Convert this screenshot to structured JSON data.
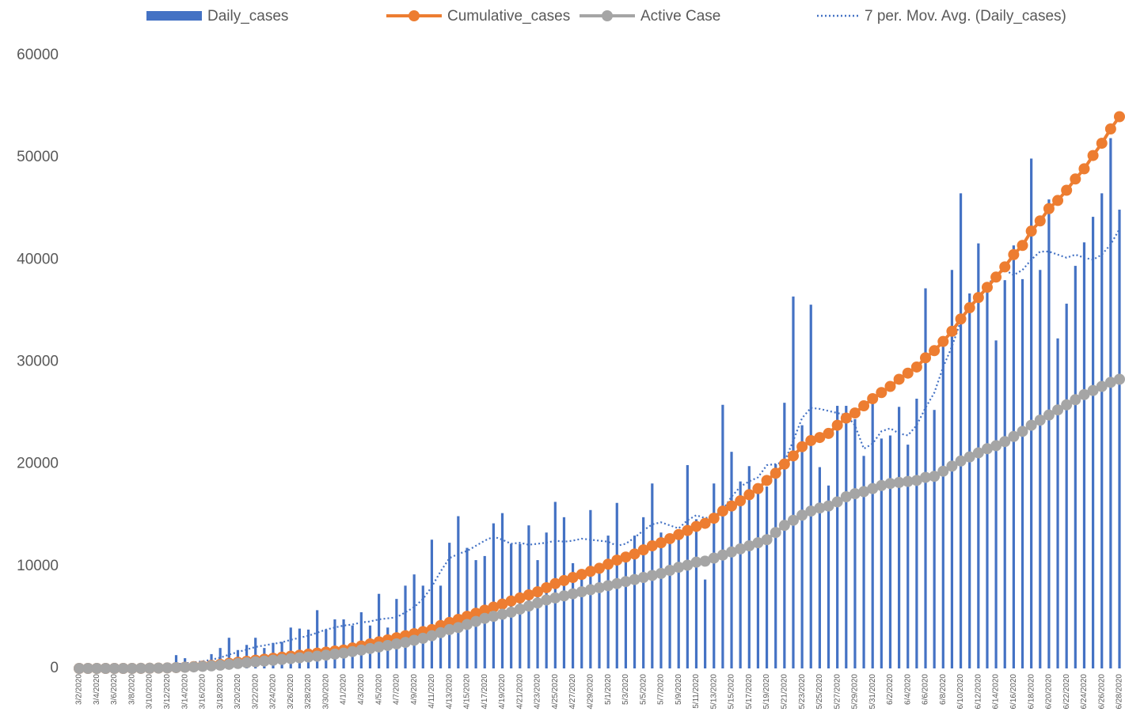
{
  "chart_data": {
    "type": "bar",
    "categories": [
      "3/2/2020",
      null,
      "3/4/2020",
      null,
      "3/6/2020",
      null,
      "3/8/2020",
      null,
      "3/10/2020",
      null,
      "3/12/2020",
      null,
      "3/14/2020",
      null,
      "3/16/2020",
      null,
      "3/18/2020",
      null,
      "3/20/2020",
      null,
      "3/22/2020",
      null,
      "3/24/2020",
      null,
      "3/26/2020",
      null,
      "3/28/2020",
      null,
      "3/30/2020",
      null,
      "4/1/2020",
      null,
      "4/3/2020",
      null,
      "4/5/2020",
      null,
      "4/7/2020",
      null,
      "4/9/2020",
      null,
      "4/11/2020",
      null,
      "4/13/2020",
      null,
      "4/15/2020",
      null,
      "4/17/2020",
      null,
      "4/19/2020",
      null,
      "4/21/2020",
      null,
      "4/23/2020",
      null,
      "4/25/2020",
      null,
      "4/27/2020",
      null,
      "4/29/2020",
      null,
      "5/1/2020",
      null,
      "5/3/2020",
      null,
      "5/5/2020",
      null,
      "5/7/2020",
      null,
      "5/9/2020",
      null,
      "5/11/2020",
      null,
      "5/13/2020",
      null,
      "5/15/2020",
      null,
      "5/17/2020",
      null,
      "5/19/2020",
      null,
      "5/21/2020",
      null,
      "5/23/2020",
      null,
      "5/25/2020",
      null,
      "5/27/2020",
      null,
      "5/29/2020",
      null,
      "5/31/2020",
      null,
      "6/2/2020",
      null,
      "6/4/2020",
      null,
      "6/6/2020",
      null,
      "6/8/2020",
      null,
      "6/10/2020",
      null,
      "6/12/2020",
      null,
      "6/14/2020",
      null,
      "6/16/2020",
      null,
      "6/18/2020",
      null,
      "6/20/2020",
      null,
      "6/22/2020",
      null,
      "6/24/2020",
      null,
      "6/26/2020",
      null,
      "6/28/2020"
    ],
    "series": [
      {
        "name": "Daily_cases",
        "type": "bar",
        "color": "#4472c4",
        "values": [
          0,
          10,
          20,
          30,
          40,
          60,
          80,
          100,
          200,
          300,
          400,
          1300,
          1000,
          600,
          700,
          1400,
          2000,
          3000,
          1800,
          2300,
          3000,
          2000,
          2500,
          2600,
          4000,
          3900,
          3800,
          5700,
          3800,
          4800,
          4800,
          4200,
          5500,
          4200,
          7300,
          4000,
          6800,
          8100,
          9200,
          8100,
          12600,
          8100,
          12300,
          14900,
          11800,
          10600,
          11000,
          14200,
          15200,
          12200,
          12200,
          14000,
          10600,
          13300,
          16300,
          14800,
          10300,
          9400,
          15500,
          9600,
          13000,
          16200,
          11000,
          13000,
          14800,
          18100,
          13300,
          12900,
          13400,
          19900,
          14600,
          8700,
          18100,
          25800,
          21200,
          18300,
          19800,
          18000,
          17800,
          20000,
          26000,
          36400,
          23800,
          35600,
          19700,
          17900,
          25700,
          25700,
          24400,
          20800,
          26000,
          22500,
          22800,
          25600,
          21900,
          26400,
          37200,
          25300,
          31500,
          39000,
          46500,
          36700,
          41600,
          37000,
          32100,
          38000,
          41400,
          38100,
          49900,
          39000,
          45900,
          32300,
          35700,
          39400,
          41700,
          44200,
          46500,
          51900,
          44900
        ]
      },
      {
        "name": "7 per. Mov. Avg. (Daily_cases)",
        "type": "dotted",
        "color": "#4472c4",
        "values": [
          null,
          null,
          null,
          null,
          null,
          null,
          0,
          50,
          80,
          120,
          260,
          400,
          500,
          600,
          700,
          850,
          1050,
          1350,
          1600,
          1850,
          2100,
          2250,
          2400,
          2550,
          2800,
          3000,
          3200,
          3500,
          3800,
          4000,
          4200,
          4300,
          4500,
          4600,
          4800,
          4900,
          5000,
          5500,
          6000,
          6800,
          8000,
          9500,
          10800,
          11200,
          11500,
          12000,
          12500,
          12900,
          12600,
          12200,
          12300,
          12100,
          12200,
          12300,
          12500,
          12400,
          12500,
          12700,
          12600,
          12500,
          12400,
          12000,
          12200,
          12800,
          13500,
          14100,
          14300,
          14000,
          13700,
          14500,
          15000,
          14700,
          14900,
          15500,
          16800,
          17800,
          18300,
          18700,
          19900,
          20000,
          20200,
          22300,
          24500,
          25500,
          25400,
          25200,
          25000,
          24800,
          23800,
          21500,
          22000,
          23200,
          23500,
          23000,
          22800,
          23800,
          25500,
          27000,
          29500,
          31500,
          34000,
          35500,
          36300,
          37500,
          38500,
          39000,
          38500,
          39000,
          40000,
          40800,
          40800,
          40500,
          40200,
          40500,
          40200,
          40000,
          40500,
          41500,
          43000
        ]
      },
      {
        "name": "Cumulative_cases",
        "type": "line",
        "color": "#ed7d31",
        "values": [
          0,
          0,
          0,
          0,
          0,
          0,
          0,
          10,
          20,
          30,
          50,
          80,
          120,
          170,
          230,
          300,
          400,
          500,
          600,
          700,
          800,
          900,
          1000,
          1100,
          1200,
          1300,
          1400,
          1500,
          1600,
          1700,
          1800,
          2000,
          2200,
          2400,
          2600,
          2800,
          3000,
          3200,
          3400,
          3600,
          3800,
          4200,
          4500,
          4800,
          5100,
          5400,
          5700,
          6000,
          6300,
          6600,
          6900,
          7200,
          7500,
          7900,
          8300,
          8600,
          8900,
          9200,
          9500,
          9800,
          10200,
          10600,
          10900,
          11200,
          11600,
          12000,
          12300,
          12700,
          13100,
          13500,
          13900,
          14200,
          14700,
          15400,
          15900,
          16400,
          17000,
          17600,
          18400,
          19100,
          20000,
          20800,
          21700,
          22300,
          22600,
          23000,
          23800,
          24500,
          25000,
          25700,
          26400,
          27000,
          27600,
          28300,
          28900,
          29500,
          30400,
          31100,
          32000,
          33000,
          34200,
          35300,
          36300,
          37300,
          38300,
          39300,
          40500,
          41400,
          42800,
          43800,
          45000,
          45800,
          46800,
          47900,
          48900,
          50200,
          51400,
          52800,
          54000
        ]
      },
      {
        "name": "Active Case",
        "type": "line",
        "color": "#a5a5a5",
        "values": [
          0,
          0,
          0,
          0,
          0,
          0,
          0,
          10,
          20,
          30,
          50,
          80,
          110,
          150,
          200,
          250,
          320,
          400,
          480,
          560,
          640,
          720,
          800,
          880,
          960,
          1040,
          1120,
          1200,
          1300,
          1400,
          1500,
          1650,
          1800,
          1950,
          2100,
          2250,
          2400,
          2550,
          2750,
          2950,
          3200,
          3500,
          3800,
          4000,
          4300,
          4600,
          4900,
          5100,
          5300,
          5500,
          5800,
          6100,
          6400,
          6700,
          6900,
          7100,
          7300,
          7500,
          7700,
          7900,
          8100,
          8300,
          8500,
          8700,
          8900,
          9100,
          9300,
          9600,
          9900,
          10100,
          10400,
          10500,
          10800,
          11100,
          11400,
          11700,
          12000,
          12300,
          12600,
          13300,
          14000,
          14500,
          15000,
          15400,
          15700,
          15900,
          16300,
          16800,
          17100,
          17300,
          17600,
          17900,
          18100,
          18200,
          18300,
          18400,
          18700,
          18800,
          19300,
          19800,
          20300,
          20700,
          21100,
          21500,
          21800,
          22200,
          22700,
          23200,
          23800,
          24300,
          24800,
          25300,
          25800,
          26300,
          26800,
          27200,
          27600,
          28000,
          28300
        ]
      }
    ],
    "legend_order": [
      0,
      2,
      3,
      1
    ],
    "ylim": [
      0,
      60000
    ],
    "yticks": [
      0,
      10000,
      20000,
      30000,
      40000,
      50000,
      60000
    ],
    "grid": false,
    "legend": "top"
  }
}
